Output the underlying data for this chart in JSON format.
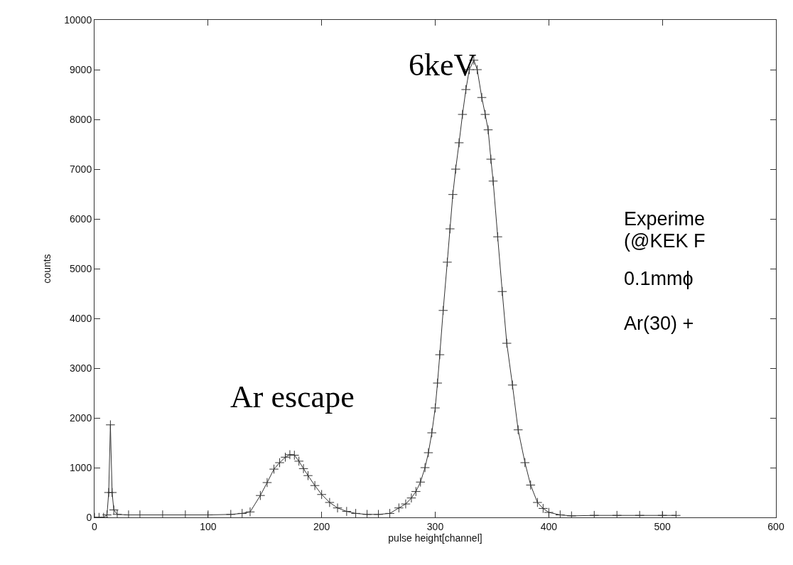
{
  "chart_data": {
    "type": "line",
    "xlabel": "pulse height[channel]",
    "ylabel": "counts",
    "xlim": [
      0,
      600
    ],
    "xticks": [
      0,
      100,
      200,
      300,
      400,
      500,
      600
    ],
    "ylim": [
      0,
      10000
    ],
    "yticks": [
      0,
      1000,
      2000,
      3000,
      4000,
      5000,
      6000,
      7000,
      8000,
      9000,
      10000
    ],
    "marker": "cross",
    "line_style": "solid",
    "series": [
      {
        "color": "#333333",
        "x": [
          0,
          4,
          8,
          11,
          12.5,
          14,
          15.5,
          17,
          20,
          30,
          40,
          60,
          80,
          100,
          120,
          130,
          137,
          146,
          152,
          158,
          163,
          168,
          172,
          176,
          180,
          184,
          188,
          194,
          200,
          207,
          214,
          222,
          230,
          240,
          250,
          260,
          268,
          274,
          279,
          283,
          287,
          291,
          294,
          297,
          300,
          302,
          304,
          307,
          310.6,
          313,
          315.5,
          318,
          321,
          324,
          327,
          330,
          334,
          337,
          341,
          344,
          346.6,
          349,
          351,
          355,
          359,
          363,
          368,
          373,
          379,
          384,
          390,
          395,
          400,
          410,
          420,
          440,
          460,
          480,
          500,
          512
        ],
        "values": [
          0,
          0,
          0,
          50,
          500,
          1860,
          500,
          150,
          60,
          50,
          50,
          50,
          50,
          50,
          60,
          80,
          110,
          440,
          700,
          970,
          1100,
          1210,
          1260,
          1250,
          1130,
          980,
          840,
          640,
          460,
          300,
          190,
          120,
          80,
          60,
          60,
          80,
          190,
          270,
          390,
          520,
          710,
          1000,
          1300,
          1700,
          2200,
          2700,
          3270,
          4160,
          5130,
          5800,
          6490,
          7000,
          7530,
          8100,
          8600,
          9000,
          9190,
          9000,
          8440,
          8100,
          7790,
          7200,
          6760,
          5640,
          4540,
          3500,
          2660,
          1760,
          1100,
          650,
          300,
          180,
          100,
          50,
          30,
          40,
          40,
          40,
          40,
          40
        ]
      }
    ],
    "annotations": [
      {
        "text": "6keV",
        "x": 334,
        "y": 9190
      },
      {
        "text": "Ar escape",
        "x": 174,
        "y": 1260
      },
      "Experime",
      "(@KEK F",
      "0.1mmϕ",
      "Ar(30) +"
    ]
  }
}
